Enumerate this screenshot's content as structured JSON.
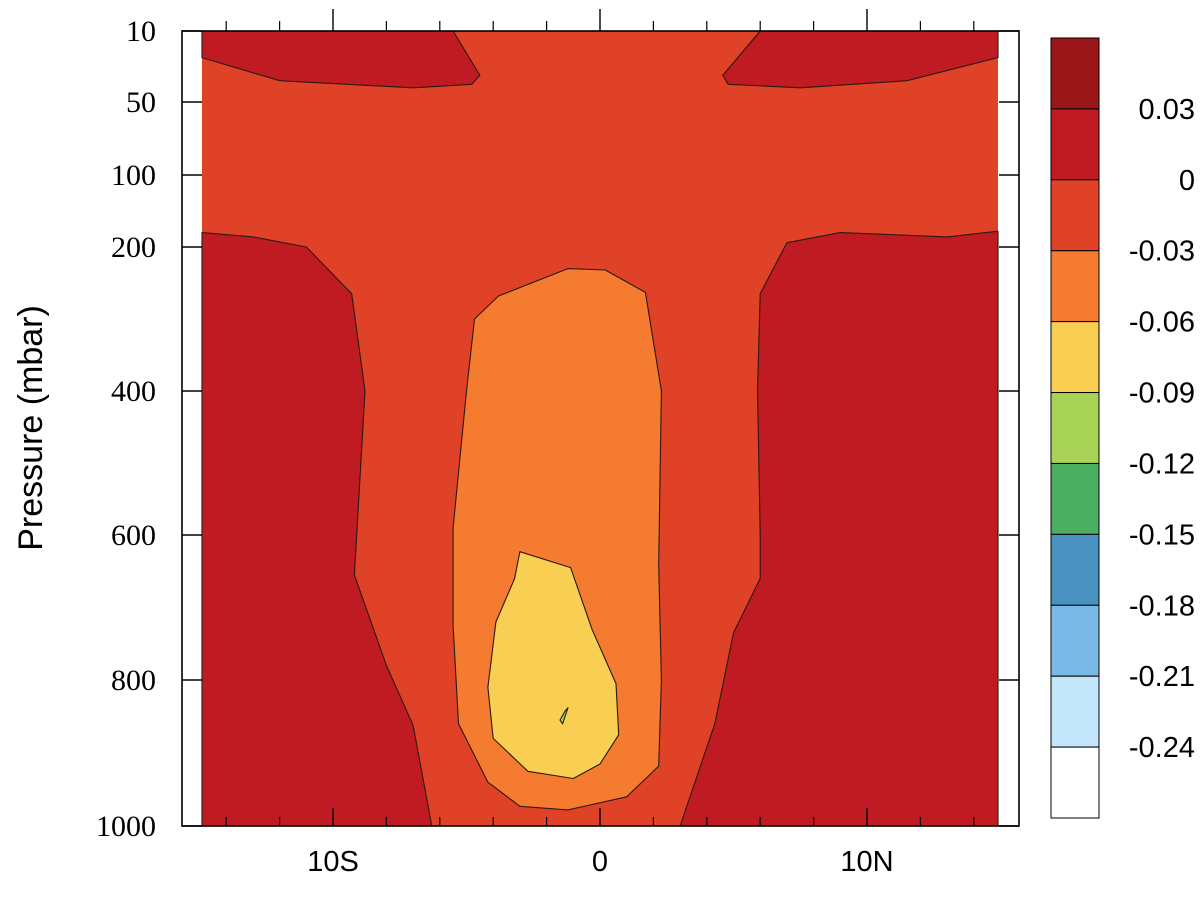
{
  "chart_data": {
    "type": "contour",
    "title": "",
    "xlabel": "",
    "ylabel": "Pressure (mbar)",
    "x_axis": {
      "min": -15,
      "max": 15,
      "major_ticks": [
        -10,
        0,
        10
      ],
      "tick_labels": [
        "10S",
        "0",
        "10N"
      ],
      "minor_ticks": [
        -14,
        -12,
        -8,
        -6,
        -4,
        -2,
        2,
        4,
        6,
        8,
        12,
        14
      ]
    },
    "y_axis": {
      "scale": "linear",
      "inverted": true,
      "min": 10,
      "max": 1000,
      "ticks": [
        10,
        50,
        100,
        200,
        400,
        600,
        800,
        1000
      ],
      "tick_labels": [
        "10",
        "50",
        "100",
        "200",
        "400",
        "600",
        "800",
        "1000"
      ]
    },
    "colorbar": {
      "orientation": "vertical",
      "position": "right",
      "levels": [
        0.03,
        0,
        -0.03,
        -0.06,
        -0.09,
        -0.12,
        -0.15,
        -0.18,
        -0.21,
        -0.24
      ],
      "level_labels": [
        "0.03",
        "0",
        "-0.03",
        "-0.06",
        "-0.09",
        "-0.12",
        "-0.15",
        "-0.18",
        "-0.21",
        "-0.24"
      ],
      "colors": [
        "#9b1618",
        "#c01a22",
        "#e04228",
        "#f57b30",
        "#f8cf52",
        "#a8d356",
        "#4cae62",
        "#4a93c0",
        "#7ab8e6",
        "#c3e6fa",
        "#ffffff"
      ]
    },
    "regions": [
      {
        "level_range": "0 to 0.03",
        "color": "#c01a22",
        "area": "upper-left corner near 10 mbar",
        "polygon": [
          [
            -15,
            10
          ],
          [
            -5.5,
            10
          ],
          [
            -4.5,
            35
          ],
          [
            -4.8,
            40
          ],
          [
            -7,
            42
          ],
          [
            -12,
            38
          ],
          [
            -15,
            25
          ]
        ]
      },
      {
        "level_range": "0 to 0.03",
        "color": "#c01a22",
        "area": "upper-right corner near 10 mbar",
        "polygon": [
          [
            6,
            10
          ],
          [
            15,
            10
          ],
          [
            15,
            25
          ],
          [
            11.5,
            38
          ],
          [
            7.5,
            42
          ],
          [
            4.8,
            40
          ],
          [
            4.6,
            35
          ]
        ]
      },
      {
        "level_range": "0 to 0.03",
        "color": "#c01a22",
        "area": "left side from 200 to 1000 mbar",
        "polygon": [
          [
            -15,
            180
          ],
          [
            -13,
            186
          ],
          [
            -11,
            200
          ],
          [
            -9.3,
            265
          ],
          [
            -8.8,
            400
          ],
          [
            -9.2,
            655
          ],
          [
            -8,
            780
          ],
          [
            -7,
            862
          ],
          [
            -6.3,
            1000
          ],
          [
            -15,
            1000
          ]
        ]
      },
      {
        "level_range": "0 to 0.03",
        "color": "#c01a22",
        "area": "right side from 200 to 1000 mbar",
        "polygon": [
          [
            15,
            178
          ],
          [
            13,
            186
          ],
          [
            9,
            180
          ],
          [
            7,
            194
          ],
          [
            6,
            265
          ],
          [
            5.9,
            400
          ],
          [
            6,
            600
          ],
          [
            6,
            660
          ],
          [
            5,
            735
          ],
          [
            4.3,
            860
          ],
          [
            3,
            1000
          ],
          [
            15,
            1000
          ]
        ]
      },
      {
        "level_range": "-0.06 to -0.03",
        "color": "#f57b30",
        "area": "central column from 230 to 1000 mbar",
        "polygon": [
          [
            -3.8,
            268
          ],
          [
            -1.2,
            230
          ],
          [
            0.2,
            232
          ],
          [
            1.7,
            263
          ],
          [
            2.3,
            400
          ],
          [
            2.2,
            640
          ],
          [
            2.3,
            800
          ],
          [
            2.2,
            918
          ],
          [
            1,
            960
          ],
          [
            -1.2,
            978
          ],
          [
            -3,
            973
          ],
          [
            -4.2,
            940
          ],
          [
            -5.3,
            860
          ],
          [
            -5.5,
            725
          ],
          [
            -5.5,
            590
          ],
          [
            -5,
            400
          ],
          [
            -4.7,
            300
          ]
        ]
      },
      {
        "level_range": "-0.09 to -0.06",
        "color": "#f8cf52",
        "area": "central core from 620 to 940 mbar",
        "polygon": [
          [
            -3,
            623
          ],
          [
            -1.1,
            645
          ],
          [
            -0.3,
            730
          ],
          [
            0.6,
            805
          ],
          [
            0.7,
            875
          ],
          [
            0,
            915
          ],
          [
            -1,
            935
          ],
          [
            -2.7,
            925
          ],
          [
            -4,
            880
          ],
          [
            -4.2,
            810
          ],
          [
            -3.9,
            720
          ],
          [
            -3.2,
            660
          ]
        ]
      },
      {
        "level_range": "-0.12 to -0.09",
        "color": "#a8d356",
        "area": "small spot near 850 mbar",
        "polygon": [
          [
            -1.2,
            838
          ],
          [
            -1.4,
            860
          ],
          [
            -1.5,
            855
          ],
          [
            -1.3,
            842
          ]
        ]
      }
    ]
  }
}
